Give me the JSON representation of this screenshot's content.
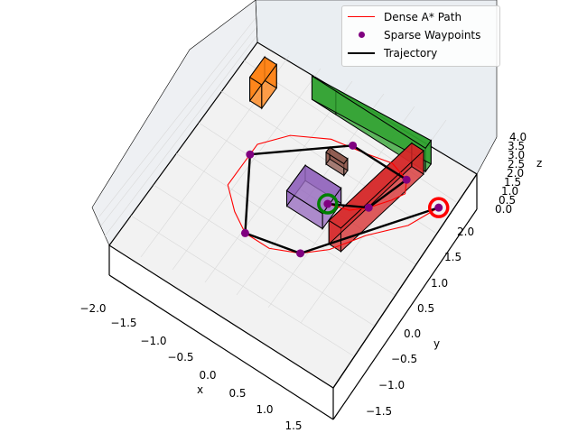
{
  "chart_data": {
    "type": "scatter",
    "projection": "3d",
    "title": "",
    "xlabel": "x",
    "ylabel": "y",
    "zlabel": "z",
    "xlim": [
      -2.0,
      1.75
    ],
    "ylim": [
      -1.75,
      2.25
    ],
    "zlim": [
      0.0,
      4.0
    ],
    "x_ticks": [
      "−2.0",
      "−1.5",
      "−1.0",
      "−0.5",
      "0.0",
      "0.5",
      "1.0",
      "1.5"
    ],
    "y_ticks": [
      "−1.5",
      "−1.0",
      "−0.5",
      "0.0",
      "0.5",
      "1.0",
      "1.5",
      "2.0"
    ],
    "z_ticks": [
      "0.0",
      "0.5",
      "1.0",
      "1.5",
      "2.0",
      "2.5",
      "3.0",
      "3.5",
      "4.0"
    ],
    "grid": true,
    "legend_position": "top-right",
    "colors": {
      "dense_path": "#ff0000",
      "waypoints": "#800080",
      "trajectory": "#000000",
      "start_marker": "#008000",
      "goal_marker": "#ff0000"
    },
    "legend": [
      {
        "label": "Dense A* Path",
        "kind": "line",
        "color": "#ff0000"
      },
      {
        "label": "Sparse Waypoints",
        "kind": "dot",
        "color": "#800080"
      },
      {
        "label": "Trajectory",
        "kind": "thick-line",
        "color": "#000000"
      }
    ],
    "series": [
      {
        "name": "Dense A* Path",
        "type": "line",
        "points": [
          [
            0.2,
            0.6,
            0.5
          ],
          [
            0.5,
            0.7,
            0.5
          ],
          [
            0.7,
            0.9,
            0.5
          ],
          [
            0.9,
            1.2,
            0.5
          ],
          [
            1.0,
            1.4,
            0.5
          ],
          [
            0.9,
            1.6,
            0.5
          ],
          [
            0.6,
            1.7,
            0.5
          ],
          [
            0.2,
            1.6,
            0.5
          ],
          [
            -0.3,
            1.5,
            0.5
          ],
          [
            -0.8,
            1.2,
            0.5
          ],
          [
            -1.1,
            0.8,
            0.5
          ],
          [
            -1.1,
            0.4,
            0.5
          ],
          [
            -1.1,
            0.0,
            0.5
          ],
          [
            -0.8,
            -0.3,
            0.5
          ],
          [
            -0.5,
            -0.5,
            0.5
          ],
          [
            -0.1,
            -0.5,
            0.5
          ],
          [
            0.3,
            -0.3,
            0.5
          ],
          [
            0.6,
            0.0,
            0.5
          ],
          [
            0.9,
            0.5,
            0.5
          ],
          [
            1.3,
            1.0,
            0.5
          ],
          [
            1.5,
            1.5,
            0.5
          ]
        ]
      },
      {
        "name": "Sparse Waypoints",
        "type": "scatter",
        "points": [
          [
            0.2,
            0.6,
            0.5
          ],
          [
            0.7,
            0.9,
            0.5
          ],
          [
            0.9,
            1.6,
            0.5
          ],
          [
            0.0,
            1.6,
            0.5
          ],
          [
            -1.1,
            0.6,
            0.5
          ],
          [
            -0.5,
            -0.5,
            0.5
          ],
          [
            0.3,
            -0.3,
            0.5
          ],
          [
            1.5,
            1.5,
            0.5
          ]
        ]
      },
      {
        "name": "Trajectory",
        "type": "line",
        "points": [
          [
            0.2,
            0.6,
            0.5
          ],
          [
            0.7,
            0.9,
            0.5
          ],
          [
            0.9,
            1.6,
            0.5
          ],
          [
            0.0,
            1.6,
            0.5
          ],
          [
            -1.1,
            0.6,
            0.5
          ],
          [
            -0.5,
            -0.5,
            0.5
          ],
          [
            0.3,
            -0.3,
            0.5
          ],
          [
            1.5,
            1.5,
            0.5
          ]
        ]
      }
    ],
    "start": [
      0.2,
      0.6,
      0.5
    ],
    "goal": [
      1.5,
      1.5,
      0.5
    ],
    "obstacles": [
      {
        "color": "#ff7f0e",
        "corners": [
          [
            -1.6,
            1.4
          ],
          [
            -1.4,
            1.4
          ],
          [
            -1.4,
            1.8
          ],
          [
            -1.6,
            1.8
          ]
        ],
        "z": [
          0.0,
          2.0
        ]
      },
      {
        "color": "#2ca02c",
        "corners": [
          [
            -0.9,
            1.95
          ],
          [
            -0.5,
            1.95
          ],
          [
            1.0,
            1.95
          ],
          [
            1.0,
            2.1
          ]
        ],
        "z": [
          0.0,
          2.0
        ]
      },
      {
        "color": "#d62728",
        "corners": [
          [
            0.5,
            0.15
          ],
          [
            0.7,
            0.15
          ],
          [
            1.0,
            1.9
          ],
          [
            0.8,
            1.9
          ]
        ],
        "z": [
          0.0,
          2.0
        ]
      },
      {
        "color": "#9467bd",
        "corners": [
          [
            -0.3,
            0.3
          ],
          [
            0.3,
            0.3
          ],
          [
            0.3,
            0.8
          ],
          [
            -0.3,
            0.8
          ]
        ],
        "z": [
          0.0,
          1.3
        ]
      },
      {
        "color": "#8c564b",
        "corners": [
          [
            -0.2,
            1.2
          ],
          [
            0.1,
            1.2
          ],
          [
            0.1,
            1.3
          ],
          [
            -0.2,
            1.3
          ]
        ],
        "z": [
          0.0,
          1.0
        ]
      }
    ]
  }
}
